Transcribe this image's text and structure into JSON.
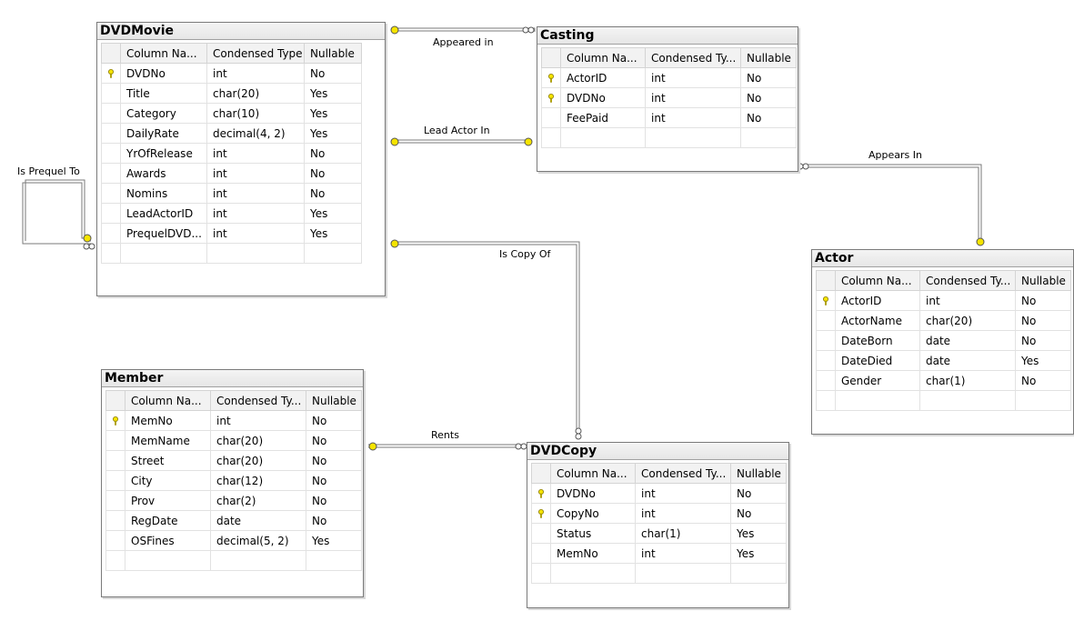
{
  "headers": {
    "column": "Column Na...",
    "type": "Condensed Type",
    "type_short": "Condensed Ty...",
    "nullable": "Nullable"
  },
  "tables": {
    "dvdmovie": {
      "name": "DVDMovie",
      "rows": [
        {
          "key": true,
          "col": "DVDNo",
          "type": "int",
          "nullable": "No"
        },
        {
          "key": false,
          "col": "Title",
          "type": "char(20)",
          "nullable": "Yes"
        },
        {
          "key": false,
          "col": "Category",
          "type": "char(10)",
          "nullable": "Yes"
        },
        {
          "key": false,
          "col": "DailyRate",
          "type": "decimal(4, 2)",
          "nullable": "Yes"
        },
        {
          "key": false,
          "col": "YrOfRelease",
          "type": "int",
          "nullable": "No"
        },
        {
          "key": false,
          "col": "Awards",
          "type": "int",
          "nullable": "No"
        },
        {
          "key": false,
          "col": "Nomins",
          "type": "int",
          "nullable": "No"
        },
        {
          "key": false,
          "col": "LeadActorID",
          "type": "int",
          "nullable": "Yes"
        },
        {
          "key": false,
          "col": "PrequelDVD...",
          "type": "int",
          "nullable": "Yes"
        }
      ]
    },
    "casting": {
      "name": "Casting",
      "rows": [
        {
          "key": true,
          "col": "ActorID",
          "type": "int",
          "nullable": "No"
        },
        {
          "key": true,
          "col": "DVDNo",
          "type": "int",
          "nullable": "No"
        },
        {
          "key": false,
          "col": "FeePaid",
          "type": "int",
          "nullable": "No"
        }
      ]
    },
    "actor": {
      "name": "Actor",
      "rows": [
        {
          "key": true,
          "col": "ActorID",
          "type": "int",
          "nullable": "No"
        },
        {
          "key": false,
          "col": "ActorName",
          "type": "char(20)",
          "nullable": "No"
        },
        {
          "key": false,
          "col": "DateBorn",
          "type": "date",
          "nullable": "No"
        },
        {
          "key": false,
          "col": "DateDied",
          "type": "date",
          "nullable": "Yes"
        },
        {
          "key": false,
          "col": "Gender",
          "type": "char(1)",
          "nullable": "No"
        }
      ]
    },
    "member": {
      "name": "Member",
      "rows": [
        {
          "key": true,
          "col": "MemNo",
          "type": "int",
          "nullable": "No"
        },
        {
          "key": false,
          "col": "MemName",
          "type": "char(20)",
          "nullable": "No"
        },
        {
          "key": false,
          "col": "Street",
          "type": "char(20)",
          "nullable": "No"
        },
        {
          "key": false,
          "col": "City",
          "type": "char(12)",
          "nullable": "No"
        },
        {
          "key": false,
          "col": "Prov",
          "type": "char(2)",
          "nullable": "No"
        },
        {
          "key": false,
          "col": "RegDate",
          "type": "date",
          "nullable": "No"
        },
        {
          "key": false,
          "col": "OSFines",
          "type": "decimal(5, 2)",
          "nullable": "Yes"
        }
      ]
    },
    "dvdcopy": {
      "name": "DVDCopy",
      "rows": [
        {
          "key": true,
          "col": "DVDNo",
          "type": "int",
          "nullable": "No"
        },
        {
          "key": true,
          "col": "CopyNo",
          "type": "int",
          "nullable": "No"
        },
        {
          "key": false,
          "col": "Status",
          "type": "char(1)",
          "nullable": "Yes"
        },
        {
          "key": false,
          "col": "MemNo",
          "type": "int",
          "nullable": "Yes"
        }
      ]
    }
  },
  "relationships": {
    "appeared_in": "Appeared in",
    "lead_actor_in": "Lead Actor In",
    "appears_in": "Appears In",
    "is_prequel_to": "Is Prequel To",
    "is_copy_of": "Is Copy Of",
    "rents": "Rents"
  },
  "colors": {
    "key_icon": "#f5e400",
    "relation_line": "#777777"
  }
}
